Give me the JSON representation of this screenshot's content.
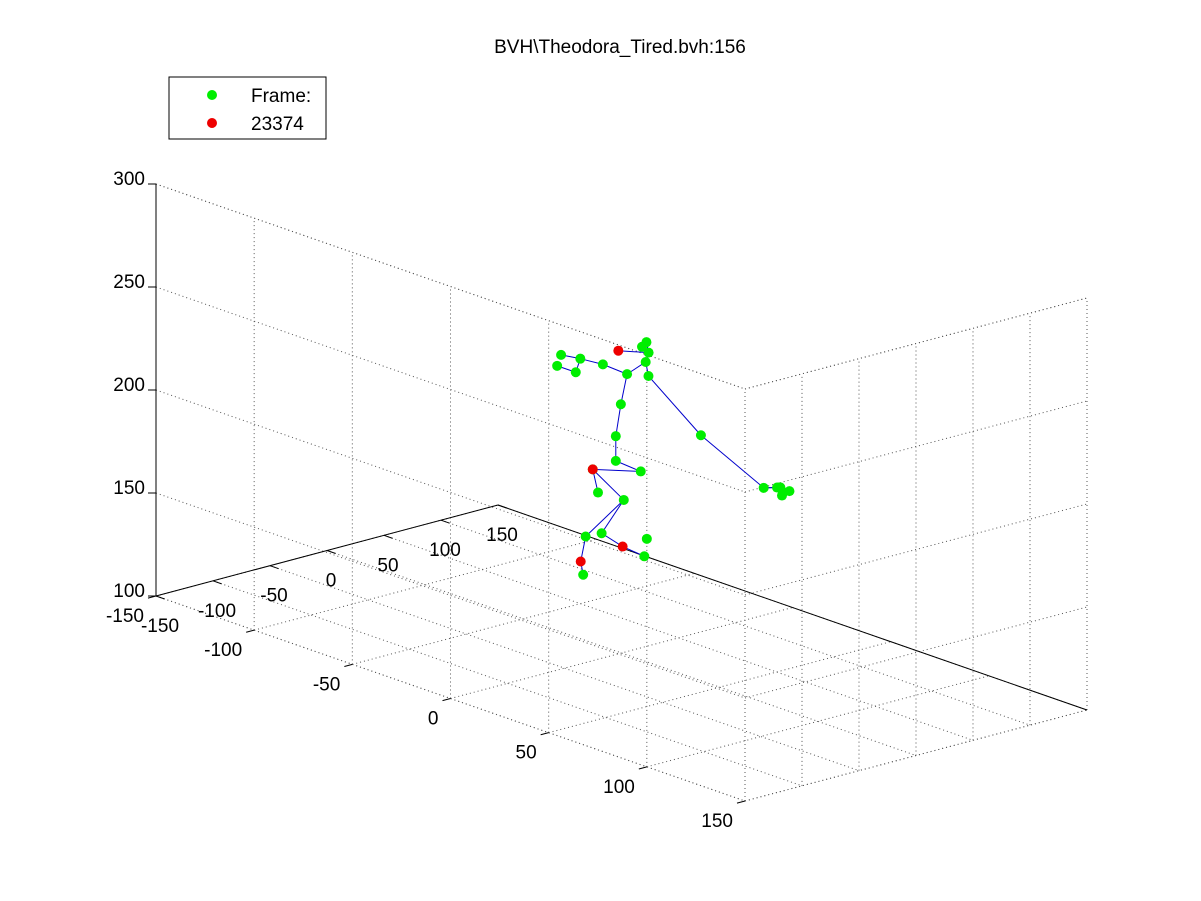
{
  "chart_data": {
    "type": "scatter",
    "title": "BVH\\Theodora_Tired.bvh:156",
    "x_ticks": [
      "-150",
      "-100",
      "-50",
      "0",
      "50",
      "100",
      "150"
    ],
    "y_ticks": [
      "-150",
      "-100",
      "-50",
      "0",
      "50",
      "100",
      "150"
    ],
    "z_ticks": [
      "100",
      "150",
      "200",
      "250",
      "300"
    ],
    "xlim": [
      -150,
      150
    ],
    "ylim": [
      -150,
      150
    ],
    "zlim": [
      100,
      300
    ],
    "grid": true,
    "legend": {
      "placement": "top-left",
      "entries": [
        {
          "label": "Frame:",
          "color": "#00ee00"
        },
        {
          "label": "23374",
          "color": "#ee0000"
        }
      ]
    },
    "colors": {
      "green_markers": "#00ee00",
      "red_markers": "#ee0000",
      "skeleton_lines": "#0000cc",
      "grid": "#555555",
      "axes": "#000000"
    },
    "points": [
      {
        "x": 20,
        "y": 0,
        "z": 144,
        "c": "green"
      },
      {
        "x": 5,
        "y": 10,
        "z": 158,
        "c": "green"
      },
      {
        "x": -8,
        "y": -10,
        "z": 187,
        "c": "green"
      },
      {
        "x": 10,
        "y": 4,
        "z": 188,
        "c": "green"
      },
      {
        "x": -12,
        "y": -5,
        "z": 178,
        "c": "green"
      },
      {
        "x": -5,
        "y": 0,
        "z": 194,
        "c": "green"
      },
      {
        "x": -5,
        "y": 0,
        "z": 206,
        "c": "green"
      },
      {
        "x": -4,
        "y": 2,
        "z": 222,
        "c": "green"
      },
      {
        "x": -2,
        "y": 4,
        "z": 237,
        "c": "green"
      },
      {
        "x": 4,
        "y": 10,
        "z": 244,
        "c": "green"
      },
      {
        "x": 10,
        "y": 8,
        "z": 247,
        "c": "green"
      },
      {
        "x": 15,
        "y": 4,
        "z": 250,
        "c": "green"
      },
      {
        "x": 18,
        "y": 0,
        "z": 246,
        "c": "green"
      },
      {
        "x": -6,
        "y": -6,
        "z": 239,
        "c": "green"
      },
      {
        "x": -12,
        "y": -14,
        "z": 240,
        "c": "green"
      },
      {
        "x": -22,
        "y": -18,
        "z": 242,
        "c": "green"
      },
      {
        "x": -16,
        "y": -14,
        "z": 234,
        "c": "green"
      },
      {
        "x": -22,
        "y": -20,
        "z": 236,
        "c": "green"
      },
      {
        "x": 3,
        "y": 12,
        "z": 238,
        "c": "green"
      },
      {
        "x": 18,
        "y": 30,
        "z": 213,
        "c": "green"
      },
      {
        "x": 30,
        "y": 55,
        "z": 194,
        "c": "green"
      },
      {
        "x": 38,
        "y": 58,
        "z": 194,
        "c": "green"
      },
      {
        "x": 36,
        "y": 60,
        "z": 195,
        "c": "green"
      },
      {
        "x": 40,
        "y": 56,
        "z": 193,
        "c": "green"
      },
      {
        "x": 34,
        "y": 62,
        "z": 192,
        "c": "green"
      },
      {
        "x": 42,
        "y": 58,
        "z": 191,
        "c": "green"
      },
      {
        "x": 44,
        "y": 60,
        "z": 192,
        "c": "green"
      },
      {
        "x": 2,
        "y": 0,
        "z": 174,
        "c": "green"
      },
      {
        "x": 17,
        "y": -20,
        "z": 149,
        "c": "green"
      },
      {
        "x": -28,
        "y": -2,
        "z": 160,
        "c": "green"
      },
      {
        "x": -25,
        "y": -5,
        "z": 140,
        "c": "green"
      },
      {
        "x": -20,
        "y": 10,
        "z": 253,
        "c": "red"
      },
      {
        "x": -8,
        "y": -10,
        "z": 187,
        "c": "red"
      },
      {
        "x": -22,
        "y": -8,
        "z": 145,
        "c": "red"
      },
      {
        "x": 32,
        "y": -18,
        "z": 141,
        "c": "red"
      }
    ]
  }
}
